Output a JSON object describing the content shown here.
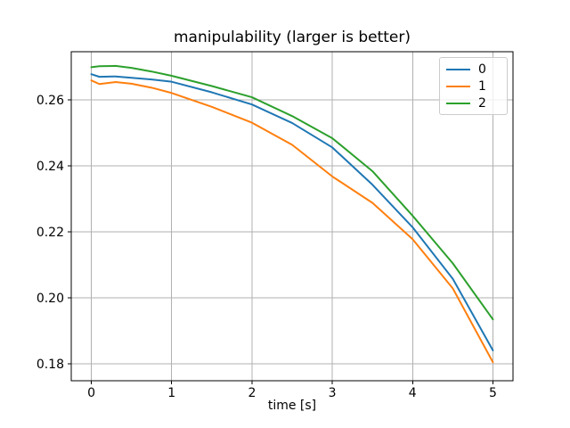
{
  "figure": {
    "background": "#ffffff"
  },
  "chart_data": {
    "type": "line",
    "title": "manipulability (larger is better)",
    "xlabel": "time [s]",
    "ylabel": "",
    "xlim": [
      -0.25,
      5.25
    ],
    "ylim": [
      0.1749,
      0.2746
    ],
    "xticks": [
      0,
      1,
      2,
      3,
      4,
      5
    ],
    "xtick_labels": [
      "0",
      "1",
      "2",
      "3",
      "4",
      "5"
    ],
    "yticks": [
      0.18,
      0.2,
      0.22,
      0.24,
      0.26
    ],
    "ytick_labels": [
      "0.18",
      "0.20",
      "0.22",
      "0.24",
      "0.26"
    ],
    "grid": true,
    "grid_color": "#b0b0b0",
    "spine_color": "#000000",
    "legend_position": "upper right",
    "x": [
      0,
      0.1,
      0.3,
      0.5,
      0.75,
      1,
      1.5,
      2,
      2.5,
      3,
      3.5,
      4,
      4.5,
      5
    ],
    "series": [
      {
        "name": "0",
        "color": "#1f77b4",
        "values": [
          0.2678,
          0.267,
          0.2671,
          0.2667,
          0.2662,
          0.2655,
          0.2623,
          0.2586,
          0.253,
          0.2456,
          0.2343,
          0.2214,
          0.2058,
          0.1841
        ]
      },
      {
        "name": "1",
        "color": "#ff7f0e",
        "values": [
          0.2659,
          0.2648,
          0.2654,
          0.2649,
          0.2637,
          0.2621,
          0.2579,
          0.2531,
          0.2464,
          0.2368,
          0.2288,
          0.2178,
          0.2029,
          0.1805
        ]
      },
      {
        "name": "2",
        "color": "#2ca02c",
        "values": [
          0.2699,
          0.2702,
          0.2703,
          0.2697,
          0.2686,
          0.2673,
          0.2642,
          0.2608,
          0.2551,
          0.2484,
          0.2384,
          0.2249,
          0.2105,
          0.1935
        ]
      }
    ]
  }
}
